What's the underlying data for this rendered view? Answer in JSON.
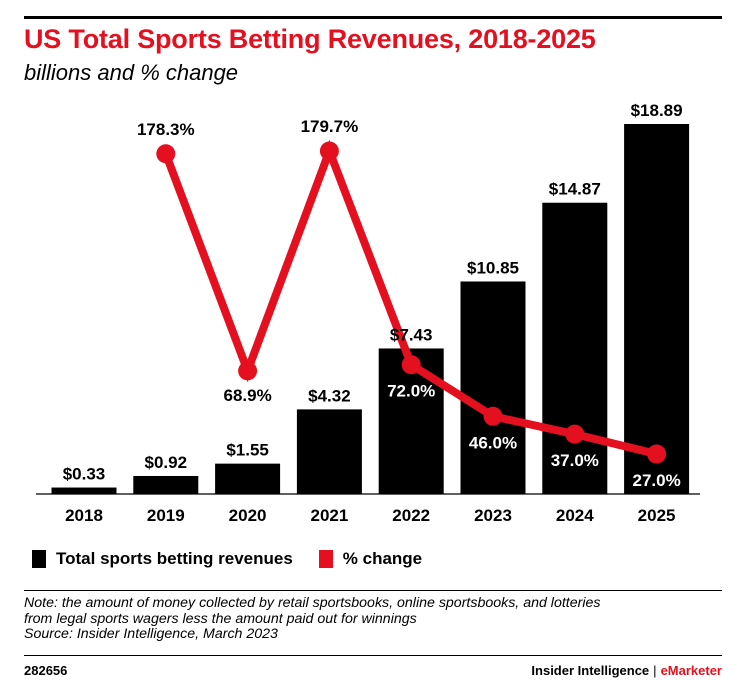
{
  "header": {
    "title": "US Total Sports Betting Revenues, 2018-2025",
    "subtitle": "billions and % change"
  },
  "chart_data": {
    "type": "bar",
    "title": "US Total Sports Betting Revenues, 2018-2025",
    "subtitle": "billions and % change",
    "categories": [
      "2018",
      "2019",
      "2020",
      "2021",
      "2022",
      "2023",
      "2024",
      "2025"
    ],
    "series": [
      {
        "name": "Total sports betting revenues",
        "type": "bar",
        "values": [
          0.33,
          0.92,
          1.55,
          4.32,
          7.43,
          10.85,
          14.87,
          18.89
        ],
        "labels": [
          "$0.33",
          "$0.92",
          "$1.55",
          "$4.32",
          "$7.43",
          "$10.85",
          "$14.87",
          "$18.89"
        ],
        "color": "#000000"
      },
      {
        "name": "% change",
        "type": "line",
        "values": [
          null,
          178.3,
          68.9,
          179.7,
          72.0,
          46.0,
          37.0,
          27.0
        ],
        "labels": [
          "",
          "178.3%",
          "68.9%",
          "179.7%",
          "72.0%",
          "46.0%",
          "37.0%",
          "27.0%"
        ],
        "color": "#e4101f"
      }
    ],
    "xlabel": "",
    "ylabel": "",
    "ylim_bar": [
      0,
      18.89
    ],
    "ylim_pct": [
      0,
      180
    ],
    "grid": false,
    "legend_position": "bottom-left"
  },
  "legend": {
    "bar_label": "Total sports betting revenues",
    "line_label": "% change",
    "bar_color": "#000000",
    "line_color": "#e4101f"
  },
  "note": {
    "line1": "Note: the amount of money collected by retail sportsbooks, online sportsbooks, and lotteries",
    "line2": "from legal sports wagers less the amount paid out for winnings",
    "source": "Source: Insider Intelligence, March 2023"
  },
  "footer": {
    "chart_id": "282656",
    "brand_left": "Insider Intelligence",
    "separator": "|",
    "brand_right": "eMarketer"
  }
}
